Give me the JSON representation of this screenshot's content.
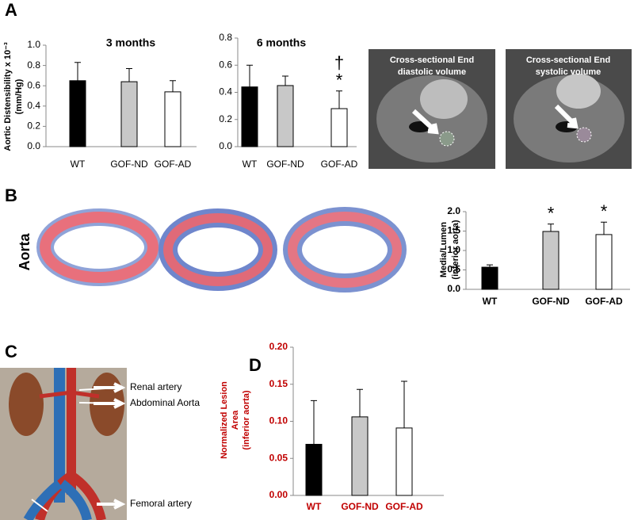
{
  "figure": {
    "panel_labels": [
      "A",
      "B",
      "C",
      "D"
    ],
    "row_label": "Aorta",
    "ct_labels": [
      [
        "Cross-sectional End",
        "diastolic volume"
      ],
      [
        "Cross-sectional End",
        "systolic volume"
      ]
    ],
    "anatomy_labels": [
      "Renal artery",
      "Abdominal Aorta",
      "Femoral artery"
    ]
  },
  "chart_data": [
    {
      "type": "bar",
      "title": "3 months",
      "ylabel": [
        "Aortic Distensibility x 10⁻³",
        "(mm/Hg)"
      ],
      "categories": [
        "WT",
        "GOF-ND",
        "GOF-AD"
      ],
      "values": [
        0.65,
        0.64,
        0.54
      ],
      "errors": [
        0.18,
        0.13,
        0.11
      ],
      "colors": [
        "#000000",
        "#c8c8c8",
        "#ffffff"
      ],
      "ylim": [
        0,
        1.0
      ],
      "yticks": [
        {
          "value": 0,
          "label": "0.0"
        },
        {
          "value": 0.2,
          "label": "0.2"
        },
        {
          "value": 0.4,
          "label": "0.4"
        },
        {
          "value": 0.6,
          "label": "0.6"
        },
        {
          "value": 0.8,
          "label": "0.8"
        },
        {
          "value": 1.0,
          "label": "1.0"
        }
      ]
    },
    {
      "type": "bar",
      "title": "6 months",
      "categories": [
        "WT",
        "GOF-ND",
        "GOF-AD"
      ],
      "values": [
        0.44,
        0.45,
        0.28
      ],
      "errors": [
        0.16,
        0.07,
        0.13
      ],
      "colors": [
        "#000000",
        "#c8c8c8",
        "#ffffff"
      ],
      "ylim": [
        0,
        0.8
      ],
      "yticks": [
        {
          "value": 0,
          "label": "0.0"
        },
        {
          "value": 0.2,
          "label": "0.2"
        },
        {
          "value": 0.4,
          "label": "0.4"
        },
        {
          "value": 0.6,
          "label": "0.6"
        },
        {
          "value": 0.8,
          "label": "0.8"
        }
      ],
      "annotations": [
        {
          "text": "†",
          "category": 2
        },
        {
          "text": "*",
          "category": 2
        }
      ]
    },
    {
      "type": "bar",
      "ylabel": [
        "Media/Lumen",
        "(inferior aorta)"
      ],
      "categories": [
        "WT",
        "GOF-ND",
        "GOF-AD"
      ],
      "values": [
        0.57,
        1.49,
        1.41
      ],
      "errors": [
        0.06,
        0.19,
        0.32
      ],
      "colors": [
        "#000000",
        "#c8c8c8",
        "#ffffff"
      ],
      "ylim": [
        0,
        2.0
      ],
      "yticks": [
        {
          "value": 0,
          "label": "0.0"
        },
        {
          "value": 0.5,
          "label": "0.5"
        },
        {
          "value": 1.0,
          "label": "1.0"
        },
        {
          "value": 1.5,
          "label": "1.5"
        },
        {
          "value": 2.0,
          "label": "2.0"
        }
      ],
      "annotations": [
        {
          "text": "*",
          "category": 1
        },
        {
          "text": "*",
          "category": 2
        }
      ]
    },
    {
      "type": "bar",
      "ylabel": [
        "Normalized Lesion",
        "Area",
        "(inferior aorta)"
      ],
      "label_color": "#c00000",
      "categories": [
        "WT",
        "GOF-ND",
        "GOF-AD"
      ],
      "values": [
        0.069,
        0.106,
        0.091
      ],
      "errors": [
        0.059,
        0.037,
        0.063
      ],
      "colors": [
        "#000000",
        "#c8c8c8",
        "#ffffff"
      ],
      "ylim": [
        0,
        0.2
      ],
      "yticks": [
        {
          "value": 0,
          "label": "0.00"
        },
        {
          "value": 0.05,
          "label": "0.05"
        },
        {
          "value": 0.1,
          "label": "0.10"
        },
        {
          "value": 0.15,
          "label": "0.15"
        },
        {
          "value": 0.2,
          "label": "0.20"
        }
      ]
    }
  ]
}
